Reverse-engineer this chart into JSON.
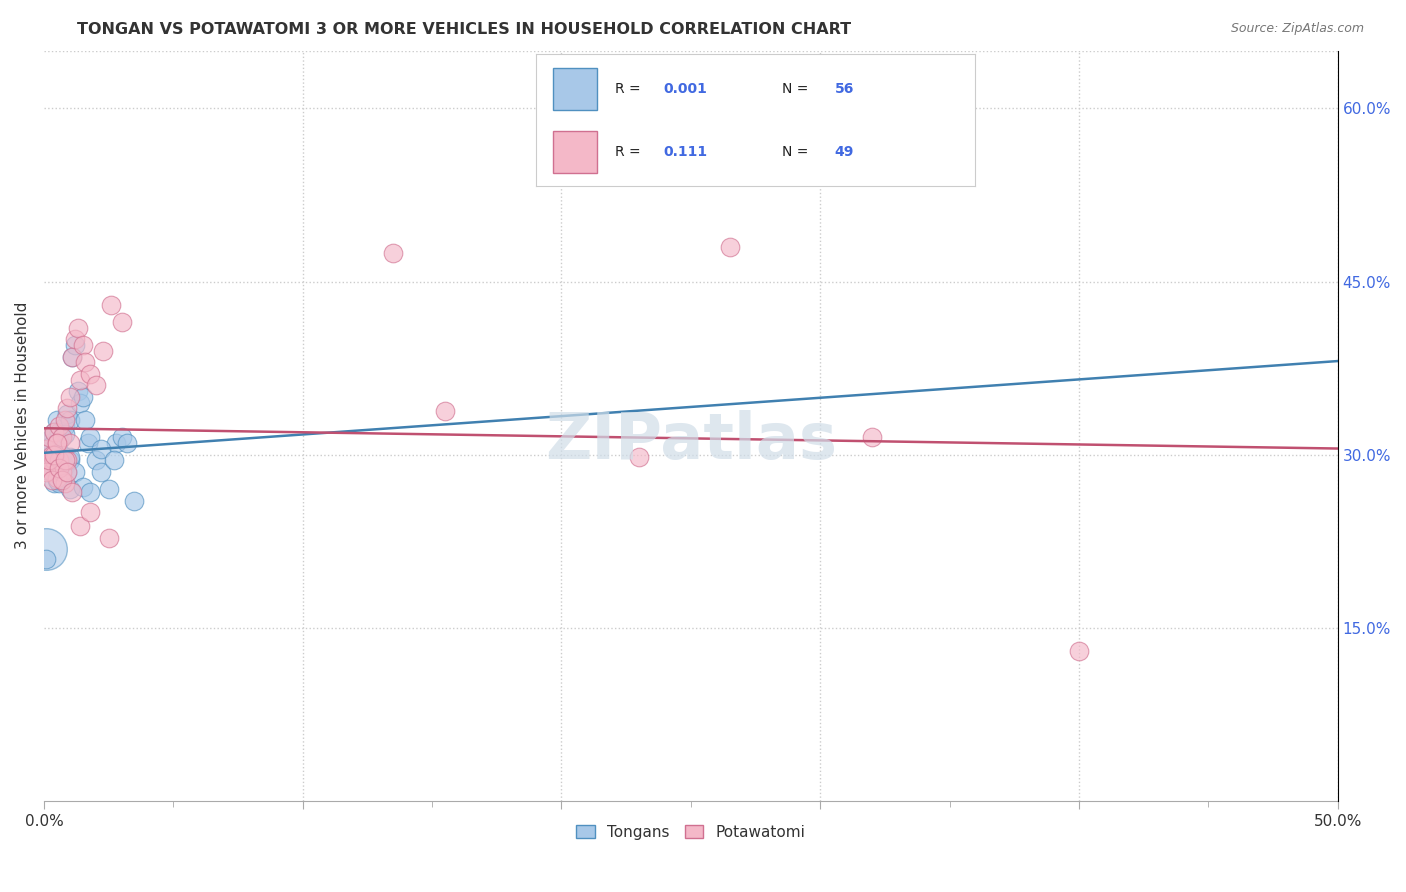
{
  "title": "TONGAN VS POTAWATOMI 3 OR MORE VEHICLES IN HOUSEHOLD CORRELATION CHART",
  "source": "Source: ZipAtlas.com",
  "ylabel": "3 or more Vehicles in Household",
  "xlim": [
    0,
    0.5
  ],
  "ylim": [
    0,
    0.65
  ],
  "yticks_right": [
    0.15,
    0.3,
    0.45,
    0.6
  ],
  "ytick_labels_right": [
    "15.0%",
    "30.0%",
    "45.0%",
    "60.0%"
  ],
  "tongan_R": "0.001",
  "tongan_N": "56",
  "potawatomi_R": "0.111",
  "potawatomi_N": "49",
  "blue_fill": "#a8c8e8",
  "pink_fill": "#f4b8c8",
  "blue_edge": "#5090c0",
  "pink_edge": "#d07090",
  "blue_line": "#4080b0",
  "pink_line": "#c05070",
  "legend_blue": "#4169e1",
  "grid_color": "#cccccc",
  "title_color": "#333333",
  "source_color": "#777777",
  "watermark_color": "#d0dde8",
  "bg_color": "#ffffff",
  "tongan_x": [
    0.001,
    0.001,
    0.002,
    0.002,
    0.003,
    0.003,
    0.003,
    0.004,
    0.004,
    0.004,
    0.005,
    0.005,
    0.005,
    0.006,
    0.006,
    0.006,
    0.007,
    0.007,
    0.007,
    0.008,
    0.008,
    0.009,
    0.009,
    0.01,
    0.01,
    0.01,
    0.011,
    0.012,
    0.013,
    0.014,
    0.015,
    0.016,
    0.017,
    0.018,
    0.02,
    0.022,
    0.025,
    0.028,
    0.03,
    0.035,
    0.001,
    0.001,
    0.002,
    0.003,
    0.004,
    0.005,
    0.006,
    0.008,
    0.01,
    0.012,
    0.015,
    0.018,
    0.022,
    0.027,
    0.032,
    0.001
  ],
  "tongan_y": [
    0.305,
    0.29,
    0.31,
    0.295,
    0.315,
    0.3,
    0.285,
    0.32,
    0.295,
    0.275,
    0.33,
    0.31,
    0.285,
    0.32,
    0.295,
    0.275,
    0.315,
    0.3,
    0.28,
    0.325,
    0.29,
    0.335,
    0.285,
    0.33,
    0.295,
    0.27,
    0.385,
    0.395,
    0.355,
    0.345,
    0.35,
    0.33,
    0.31,
    0.315,
    0.295,
    0.285,
    0.27,
    0.31,
    0.315,
    0.26,
    0.295,
    0.287,
    0.302,
    0.308,
    0.288,
    0.278,
    0.312,
    0.318,
    0.298,
    0.285,
    0.272,
    0.268,
    0.305,
    0.295,
    0.31,
    0.21
  ],
  "potawatomi_x": [
    0.001,
    0.002,
    0.002,
    0.003,
    0.003,
    0.004,
    0.004,
    0.005,
    0.005,
    0.006,
    0.006,
    0.007,
    0.007,
    0.008,
    0.008,
    0.009,
    0.009,
    0.01,
    0.01,
    0.011,
    0.012,
    0.013,
    0.014,
    0.015,
    0.016,
    0.018,
    0.02,
    0.023,
    0.026,
    0.03,
    0.001,
    0.002,
    0.003,
    0.004,
    0.005,
    0.006,
    0.007,
    0.008,
    0.009,
    0.011,
    0.014,
    0.018,
    0.025,
    0.155,
    0.23,
    0.32,
    0.4,
    0.135,
    0.265
  ],
  "potawatomi_y": [
    0.305,
    0.29,
    0.315,
    0.3,
    0.285,
    0.32,
    0.295,
    0.31,
    0.28,
    0.325,
    0.295,
    0.315,
    0.285,
    0.33,
    0.275,
    0.34,
    0.295,
    0.35,
    0.31,
    0.385,
    0.4,
    0.41,
    0.365,
    0.395,
    0.38,
    0.37,
    0.36,
    0.39,
    0.43,
    0.415,
    0.285,
    0.295,
    0.278,
    0.3,
    0.31,
    0.288,
    0.278,
    0.295,
    0.285,
    0.268,
    0.238,
    0.25,
    0.228,
    0.338,
    0.298,
    0.315,
    0.13,
    0.475,
    0.48
  ]
}
